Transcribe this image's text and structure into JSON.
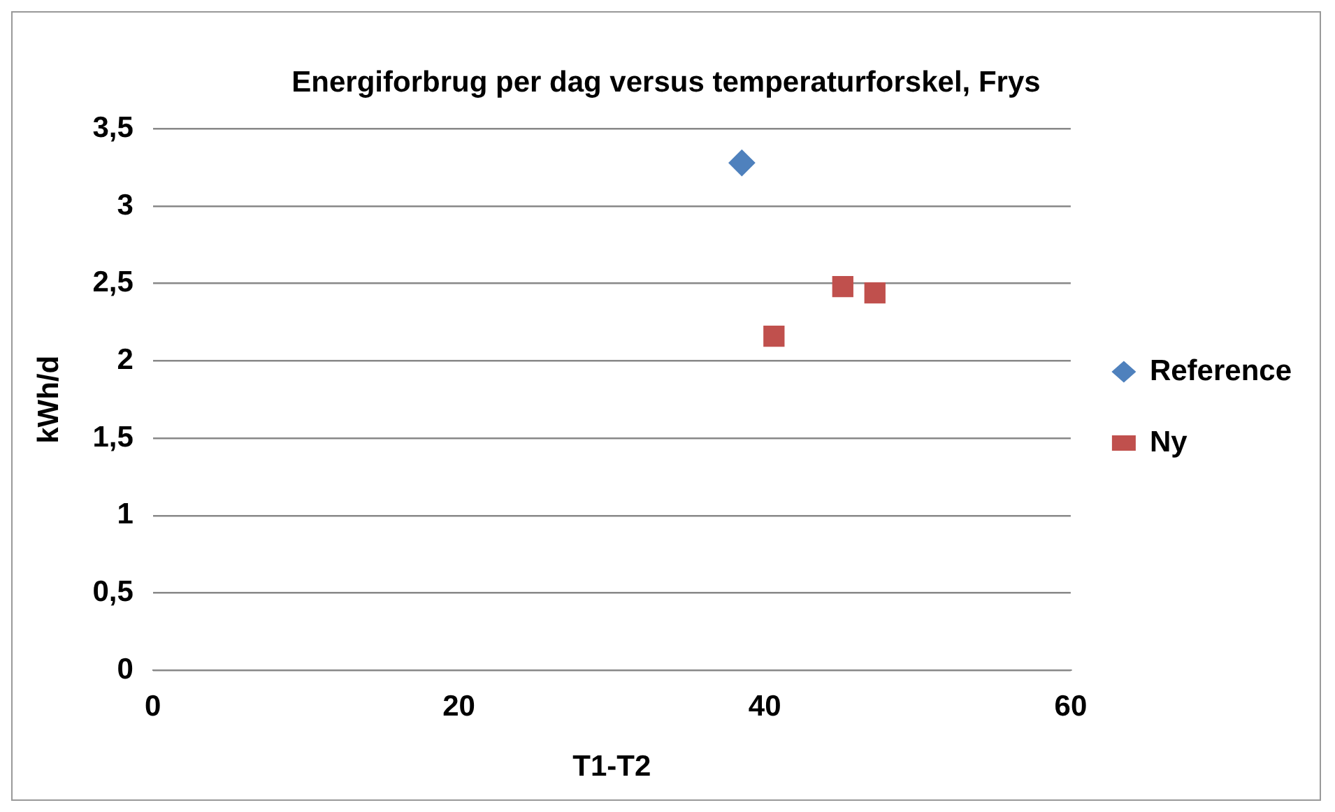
{
  "chart_data": {
    "type": "scatter",
    "title": "Energiforbrug per dag versus temperaturforskel, Frys",
    "xlabel": "T1-T2",
    "ylabel": "kWh/d",
    "series": [
      {
        "name": "Reference",
        "color": "#4f81bd",
        "marker": "diamond",
        "x": [
          38.5
        ],
        "values": [
          3.28
        ]
      },
      {
        "name": "Ny",
        "color": "#c0504d",
        "marker": "square",
        "x": [
          40.6,
          45.1,
          47.2
        ],
        "values": [
          2.16,
          2.48,
          2.44
        ]
      }
    ],
    "xlim": [
      0,
      60
    ],
    "xticks": [
      0,
      20,
      40,
      60
    ],
    "ylim": [
      0,
      3.5
    ],
    "yticks": [
      0,
      {
        "value": 0.5,
        "label": "0,5"
      },
      1,
      {
        "value": 1.5,
        "label": "1,5"
      },
      2,
      {
        "value": 2.5,
        "label": "2,5"
      },
      3,
      {
        "value": 3.5,
        "label": "3,5"
      }
    ],
    "grid": "y",
    "legend": "right"
  }
}
